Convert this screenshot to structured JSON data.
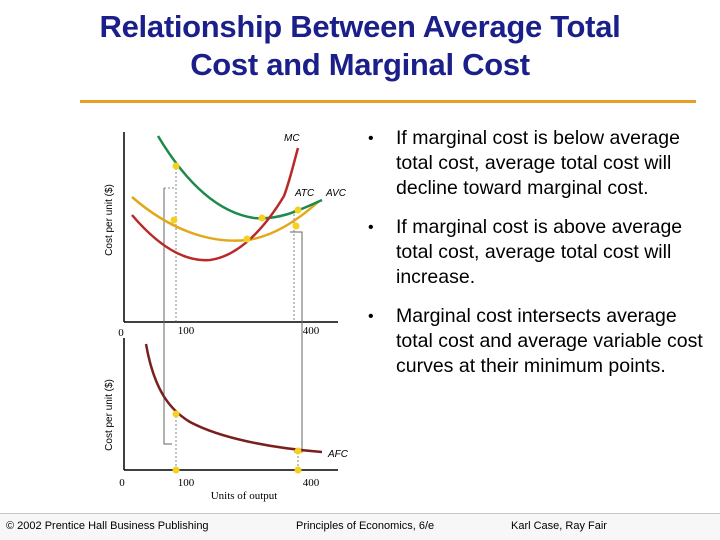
{
  "title": {
    "line1": "Relationship Between Average Total",
    "line2": "Cost and Marginal Cost"
  },
  "colors": {
    "title": "#1a1f8a",
    "rule": "#e8a020",
    "mc": "#b82a2a",
    "atc": "#1e8a4a",
    "avc": "#e2a81a",
    "afc": "#7a1f1f",
    "point": "#f5d020"
  },
  "diagram": {
    "top_graph": {
      "ylabel": "Cost per unit ($)",
      "origin_label": "0",
      "x_ticks": [
        "100",
        "400"
      ],
      "curve_labels": {
        "mc": "MC",
        "atc": "ATC",
        "avc": "AVC"
      }
    },
    "bottom_graph": {
      "ylabel": "Cost per unit ($)",
      "origin_label": "0",
      "x_ticks": [
        "100",
        "400"
      ],
      "xlabel": "Units of output",
      "curve_labels": {
        "afc": "AFC"
      }
    }
  },
  "bullets": [
    "If marginal cost is below average total cost, average total cost will decline toward marginal cost.",
    "If marginal cost is above average total cost, average total cost will increase.",
    "Marginal cost intersects average total cost and average variable cost curves at their minimum points."
  ],
  "bullet_symbol": "•",
  "footer": {
    "copyright": "© 2002 Prentice Hall Business Publishing",
    "book": "Principles of Economics, 6/e",
    "authors": "Karl Case, Ray Fair"
  }
}
